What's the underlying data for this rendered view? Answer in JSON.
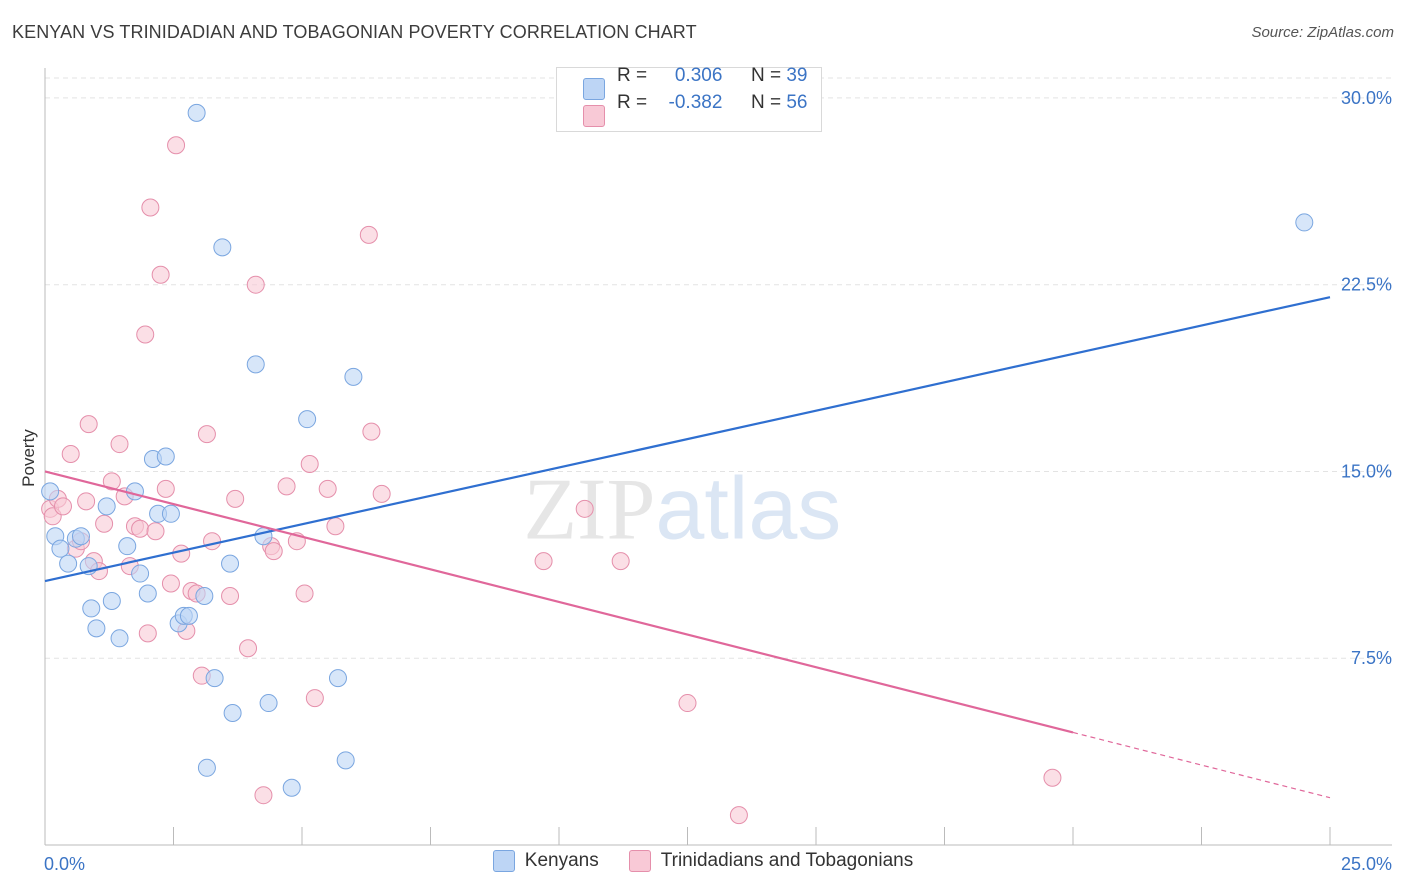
{
  "title": "KENYAN VS TRINIDADIAN AND TOBAGONIAN POVERTY CORRELATION CHART",
  "source": "Source: ZipAtlas.com",
  "watermark": "ZIPatlas",
  "colors": {
    "blue": "#3b74c5",
    "blue_fill": "#bdd5f5",
    "blue_line": "#2f6fd0",
    "pink": "#e5628f",
    "pink_fill": "#f8c9d6",
    "pink_line": "#e0679a"
  },
  "legend": {
    "r_label": "R =",
    "n_label": "N =",
    "blue": {
      "r": "0.306",
      "n": "39"
    },
    "pink": {
      "r": "-0.382",
      "n": "56"
    }
  },
  "bottom_legend": {
    "kenyans": "Kenyans",
    "trinidadians": "Trinidadians and Tobagonians"
  },
  "chart_data": {
    "type": "scatter",
    "ylabel": "Poverty",
    "xlabel": "",
    "xlim": [
      0,
      25
    ],
    "ylim": [
      0,
      30.8
    ],
    "x_ticks": [
      {
        "value": 0,
        "label": "0.0%"
      },
      {
        "value": 25,
        "label": "25.0%"
      }
    ],
    "y_ticks": [
      {
        "value": 7.5,
        "label": "7.5%"
      },
      {
        "value": 15,
        "label": "15.0%"
      },
      {
        "value": 22.5,
        "label": "22.5%"
      },
      {
        "value": 30,
        "label": "30.0%"
      }
    ],
    "grid": "horizontal dashed",
    "legend_position": "top-center",
    "series": [
      {
        "name": "Kenyans",
        "trend": {
          "x0": 0,
          "y0": 10.6,
          "x1": 25,
          "y1": 22.0,
          "dashed_from": null
        },
        "points": [
          [
            0.1,
            14.2
          ],
          [
            0.2,
            12.4
          ],
          [
            0.3,
            11.9
          ],
          [
            0.45,
            11.3
          ],
          [
            0.6,
            12.3
          ],
          [
            0.7,
            12.4
          ],
          [
            0.85,
            11.2
          ],
          [
            0.9,
            9.5
          ],
          [
            1.0,
            8.7
          ],
          [
            1.2,
            13.6
          ],
          [
            1.3,
            9.8
          ],
          [
            1.45,
            8.3
          ],
          [
            1.6,
            12.0
          ],
          [
            1.75,
            14.2
          ],
          [
            1.85,
            10.9
          ],
          [
            2.0,
            10.1
          ],
          [
            2.1,
            15.5
          ],
          [
            2.2,
            13.3
          ],
          [
            2.35,
            15.6
          ],
          [
            2.45,
            13.3
          ],
          [
            2.6,
            8.9
          ],
          [
            2.7,
            9.2
          ],
          [
            2.8,
            9.2
          ],
          [
            2.95,
            29.4
          ],
          [
            3.1,
            10.0
          ],
          [
            3.15,
            3.1
          ],
          [
            3.3,
            6.7
          ],
          [
            3.45,
            24.0
          ],
          [
            3.6,
            11.3
          ],
          [
            3.65,
            5.3
          ],
          [
            4.1,
            19.3
          ],
          [
            4.25,
            12.4
          ],
          [
            4.35,
            5.7
          ],
          [
            4.8,
            2.3
          ],
          [
            5.1,
            17.1
          ],
          [
            5.7,
            6.7
          ],
          [
            5.85,
            3.4
          ],
          [
            6.0,
            18.8
          ],
          [
            24.5,
            25.0
          ]
        ]
      },
      {
        "name": "Trinidadians and Tobagonians",
        "trend": {
          "x0": 0,
          "y0": 15.0,
          "x1": 25,
          "y1": 1.9,
          "dashed_from": 20.0
        },
        "points": [
          [
            0.1,
            13.5
          ],
          [
            0.15,
            13.2
          ],
          [
            0.25,
            13.9
          ],
          [
            0.35,
            13.6
          ],
          [
            0.5,
            15.7
          ],
          [
            0.6,
            11.9
          ],
          [
            0.7,
            12.2
          ],
          [
            0.8,
            13.8
          ],
          [
            0.85,
            16.9
          ],
          [
            0.95,
            11.4
          ],
          [
            1.05,
            11.0
          ],
          [
            1.15,
            12.9
          ],
          [
            1.3,
            14.6
          ],
          [
            1.45,
            16.1
          ],
          [
            1.55,
            14.0
          ],
          [
            1.65,
            11.2
          ],
          [
            1.75,
            12.8
          ],
          [
            1.85,
            12.7
          ],
          [
            1.95,
            20.5
          ],
          [
            2.0,
            8.5
          ],
          [
            2.05,
            25.6
          ],
          [
            2.15,
            12.6
          ],
          [
            2.25,
            22.9
          ],
          [
            2.35,
            14.3
          ],
          [
            2.45,
            10.5
          ],
          [
            2.55,
            28.1
          ],
          [
            2.65,
            11.7
          ],
          [
            2.75,
            8.6
          ],
          [
            2.85,
            10.2
          ],
          [
            2.95,
            10.1
          ],
          [
            3.05,
            6.8
          ],
          [
            3.15,
            16.5
          ],
          [
            3.25,
            12.2
          ],
          [
            3.6,
            10.0
          ],
          [
            3.7,
            13.9
          ],
          [
            3.95,
            7.9
          ],
          [
            4.1,
            22.5
          ],
          [
            4.25,
            2.0
          ],
          [
            4.4,
            12.0
          ],
          [
            4.45,
            11.8
          ],
          [
            4.7,
            14.4
          ],
          [
            4.9,
            12.2
          ],
          [
            5.05,
            10.1
          ],
          [
            5.15,
            15.3
          ],
          [
            5.25,
            5.9
          ],
          [
            5.5,
            14.3
          ],
          [
            5.65,
            12.8
          ],
          [
            6.3,
            24.5
          ],
          [
            6.35,
            16.6
          ],
          [
            6.55,
            14.1
          ],
          [
            9.7,
            11.4
          ],
          [
            10.5,
            13.5
          ],
          [
            11.2,
            11.4
          ],
          [
            12.5,
            5.7
          ],
          [
            13.5,
            1.2
          ],
          [
            19.6,
            2.7
          ]
        ]
      }
    ]
  }
}
